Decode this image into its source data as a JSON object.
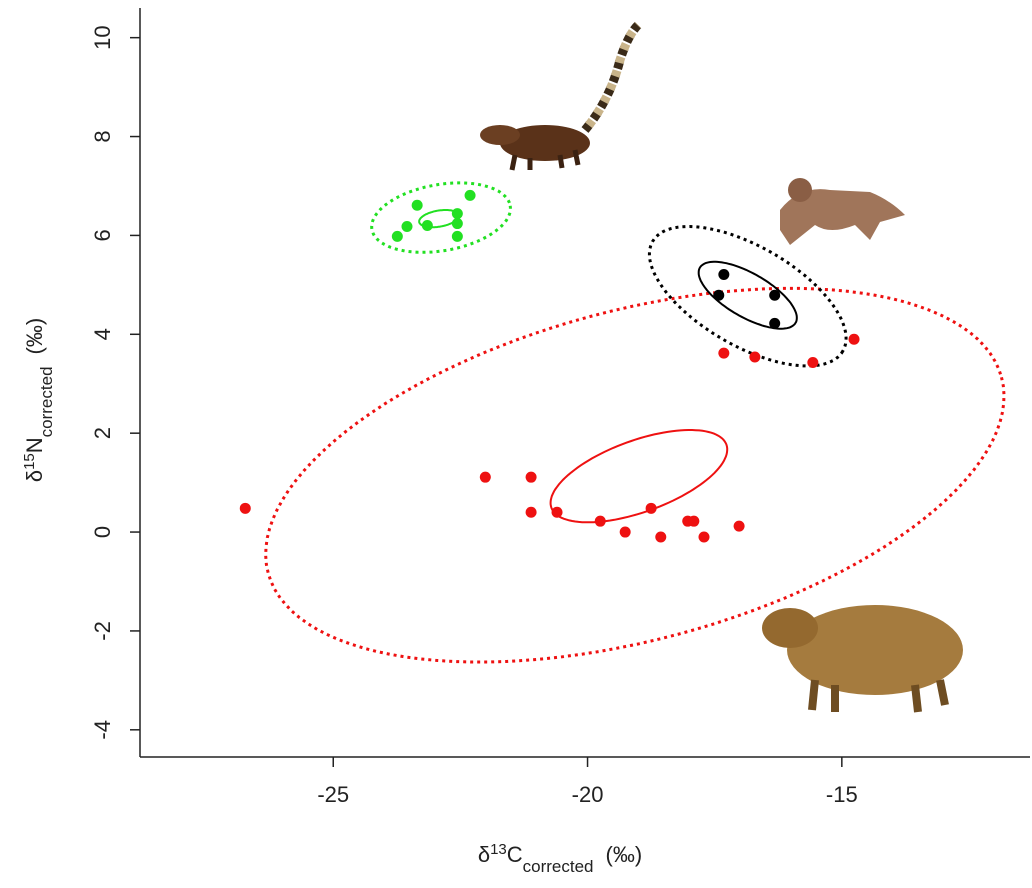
{
  "chart_data": {
    "type": "scatter",
    "xlabel": {
      "prefix": "δ",
      "sup": "13",
      "element": "C",
      "sub": "corrected",
      "unit": "(‰)"
    },
    "ylabel": {
      "prefix": "δ",
      "sup": "15",
      "element": "N",
      "sub": "corrected",
      "unit": "(‰)"
    },
    "xlim": [
      -28.8,
      -11.3
    ],
    "ylim": [
      -4.55,
      10.6
    ],
    "xticks": [
      -25,
      -20,
      -15
    ],
    "yticks": [
      -4,
      -2,
      0,
      2,
      4,
      6,
      8,
      10
    ],
    "series": [
      {
        "color": "#22e022",
        "x": [
          -23.74,
          -23.55,
          -23.35,
          -23.15,
          -22.56,
          -22.56,
          -22.56,
          -22.31
        ],
        "values": [
          5.98,
          6.18,
          6.61,
          6.2,
          6.44,
          6.24,
          5.98,
          6.81
        ]
      },
      {
        "color": "#000000",
        "x": [
          -17.32,
          -17.42,
          -16.32,
          -16.32
        ],
        "values": [
          5.21,
          4.79,
          4.79,
          4.22
        ]
      },
      {
        "color": "#ee1111",
        "x": [
          -26.73,
          -22.01,
          -21.11,
          -21.11,
          -20.6,
          -19.75,
          -19.26,
          -18.75,
          -18.56,
          -18.03,
          -17.91,
          -17.71,
          -17.02,
          -17.32,
          -16.71,
          -15.57,
          -14.76
        ],
        "values": [
          0.48,
          1.11,
          1.11,
          0.4,
          0.4,
          0.22,
          0,
          0.48,
          -0.1,
          0.22,
          0.22,
          -0.1,
          0.12,
          3.62,
          3.54,
          3.43,
          3.9
        ]
      }
    ],
    "ellipses": [
      {
        "color": "#ee1111",
        "style": "dotted",
        "center": [
          -19.07,
          1.15
        ],
        "axis1": [
          7.21,
          1.98
        ],
        "axis2": [
          0.84,
          -3.22
        ]
      },
      {
        "color": "#ee1111",
        "style": "solid",
        "center": [
          -18.99,
          1.13
        ],
        "axis1": [
          1.72,
          0.64
        ],
        "axis2": [
          0.24,
          -0.68
        ]
      },
      {
        "color": "#000000",
        "style": "dotted",
        "center": [
          -16.85,
          4.77
        ],
        "axis1": [
          1.87,
          -1.11
        ],
        "axis2": [
          -0.49,
          -0.87
        ]
      },
      {
        "color": "#000000",
        "style": "solid",
        "center": [
          -16.85,
          4.79
        ],
        "axis1": [
          0.94,
          -0.56
        ],
        "axis2": [
          -0.22,
          -0.38
        ]
      },
      {
        "color": "#22e022",
        "style": "dotted",
        "center": [
          -22.88,
          6.36
        ],
        "axis1": [
          1.36,
          0.24
        ],
        "axis2": [
          0.11,
          -0.66
        ]
      },
      {
        "color": "#22e022",
        "style": "solid",
        "center": [
          -22.92,
          6.34
        ],
        "axis1": [
          0.39,
          0.07
        ],
        "axis2": [
          0.03,
          -0.16
        ]
      }
    ]
  }
}
